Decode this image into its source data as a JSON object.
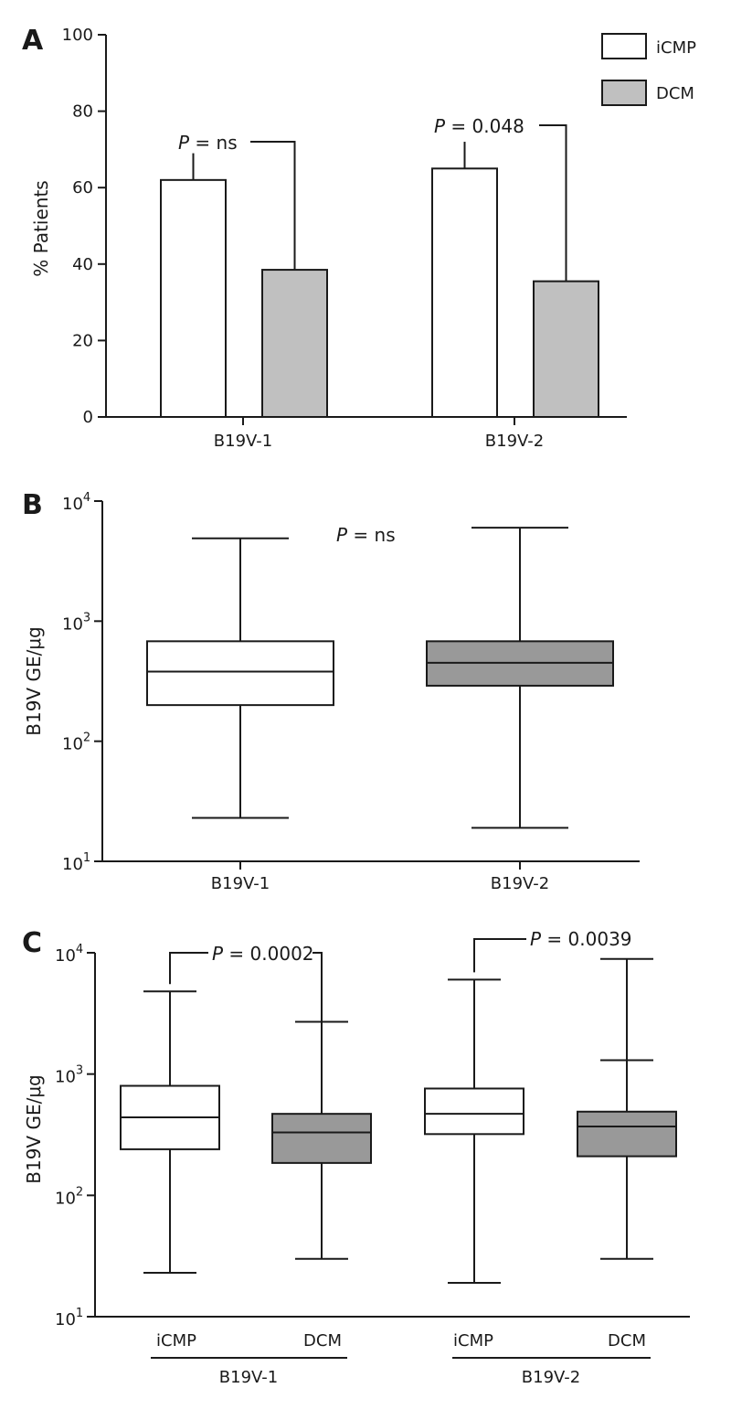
{
  "chart_data": [
    {
      "panel": "A",
      "type": "bar",
      "ylabel": "% Patients",
      "ylim": [
        0,
        100
      ],
      "yticks": [
        0,
        20,
        40,
        60,
        80,
        100
      ],
      "categories": [
        "B19V-1",
        "B19V-2"
      ],
      "series": [
        {
          "name": "iCMP",
          "color": "#ffffff",
          "values": [
            62,
            65
          ],
          "error_upper": [
            69,
            72
          ]
        },
        {
          "name": "DCM",
          "color": "#c0c0c0",
          "values": [
            38.5,
            35.5
          ]
        }
      ],
      "legend_position": "top-right",
      "annotations": [
        {
          "p": "P",
          "text": " = ns"
        },
        {
          "p": "P",
          "text": " = 0.048"
        }
      ]
    },
    {
      "panel": "B",
      "type": "box",
      "ylabel": "B19V GE/μg",
      "yscale": "log",
      "ylim": [
        10,
        10000
      ],
      "ytick_base": "10",
      "ytick_exponents": [
        "1",
        "2",
        "3",
        "4"
      ],
      "categories": [
        "B19V-1",
        "B19V-2"
      ],
      "boxes": [
        {
          "category": "B19V-1",
          "color": "#ffffff",
          "min": 23,
          "q1": 200,
          "median": 380,
          "q3": 680,
          "max": 4900
        },
        {
          "category": "B19V-2",
          "color": "#999999",
          "min": 19,
          "q1": 290,
          "median": 450,
          "q3": 680,
          "max": 6000
        }
      ],
      "annotations": [
        {
          "p": "P",
          "text": " = ns"
        }
      ]
    },
    {
      "panel": "C",
      "type": "box",
      "ylabel": "B19V GE/μg",
      "yscale": "log",
      "ylim": [
        10,
        10000
      ],
      "ytick_base": "10",
      "ytick_exponents": [
        "1",
        "2",
        "3",
        "4"
      ],
      "categories": [
        "iCMP",
        "DCM",
        "iCMP",
        "DCM"
      ],
      "groups": [
        "B19V-1",
        "B19V-2"
      ],
      "boxes": [
        {
          "category": "iCMP",
          "group": "B19V-1",
          "color": "#ffffff",
          "min": 23,
          "q1": 240,
          "median": 440,
          "q3": 800,
          "max": 4800
        },
        {
          "category": "DCM",
          "group": "B19V-1",
          "color": "#999999",
          "min": 30,
          "q1": 185,
          "median": 330,
          "q3": 470,
          "max": 2700
        },
        {
          "category": "iCMP",
          "group": "B19V-2",
          "color": "#ffffff",
          "min": 19,
          "q1": 320,
          "median": 470,
          "q3": 760,
          "max": 6000
        },
        {
          "category": "DCM",
          "group": "B19V-2",
          "color": "#999999",
          "min": 30,
          "q1": 210,
          "median": 370,
          "q3": 490,
          "max": 8900,
          "extra_tick": 1300
        }
      ],
      "annotations": [
        {
          "p": "P",
          "text": " = 0.0002"
        },
        {
          "p": "P",
          "text": " = 0.0039"
        }
      ]
    }
  ]
}
